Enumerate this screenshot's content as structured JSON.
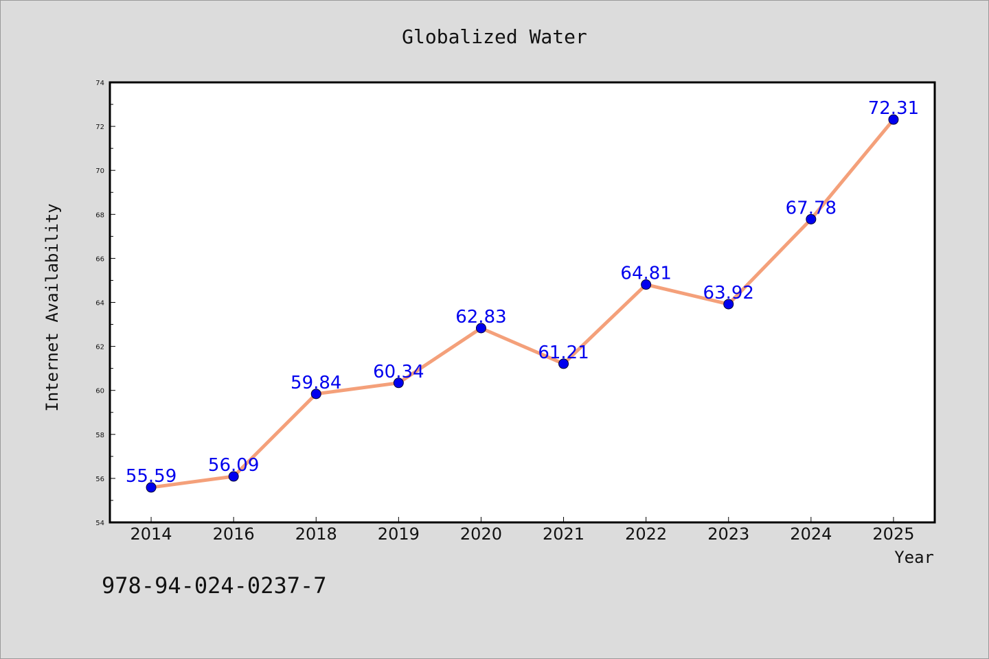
{
  "chart_data": {
    "type": "line",
    "title": "Globalized Water",
    "xlabel": "Year",
    "ylabel": "Internet Availability",
    "categories": [
      "2014",
      "2016",
      "2018",
      "2019",
      "2020",
      "2021",
      "2022",
      "2023",
      "2024",
      "2025"
    ],
    "series": [
      {
        "values": [
          55.59,
          56.09,
          59.84,
          60.34,
          62.83,
          61.21,
          64.81,
          63.92,
          67.78,
          72.31
        ],
        "line_color": "#f4a07a",
        "marker_color": "#0000ee"
      }
    ],
    "data_labels": [
      "55.59",
      "56.09",
      "59.84",
      "60.34",
      "62.83",
      "61.21",
      "64.81",
      "63.92",
      "67.78",
      "72.31"
    ],
    "label_color": "#0000ee",
    "ylim": [
      54,
      74
    ],
    "yticks": [
      "54",
      "56",
      "58",
      "60",
      "62",
      "64",
      "66",
      "68",
      "70",
      "72",
      "74"
    ],
    "grid": false,
    "legend": "none"
  },
  "footer_text": "978-94-024-0237-7"
}
